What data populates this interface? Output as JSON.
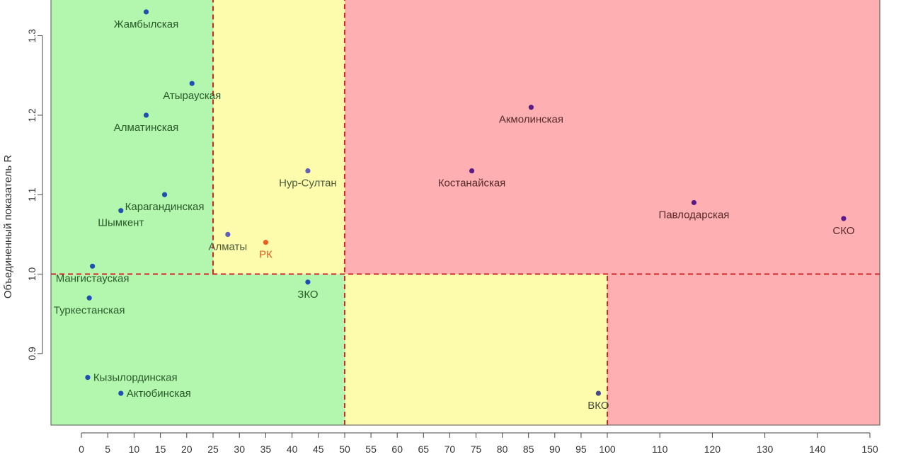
{
  "chart_data": {
    "type": "scatter",
    "title": "",
    "xlabel": "",
    "ylabel": "Объединенный показатель R",
    "xlim": [
      -4,
      153
    ],
    "ylim": [
      0.81,
      1.345
    ],
    "x_ticks": [
      0,
      5,
      10,
      15,
      20,
      25,
      30,
      35,
      40,
      45,
      50,
      55,
      60,
      65,
      70,
      75,
      80,
      85,
      90,
      95,
      100,
      110,
      120,
      130,
      140,
      150
    ],
    "y_ticks": [
      0.9,
      1.0,
      1.1,
      1.2,
      1.3
    ],
    "y_tick_labels": [
      "0.9",
      "1.0",
      "1.1",
      "1.2",
      "1.3"
    ],
    "grid": false,
    "zones": [
      {
        "x": [
          -4,
          25
        ],
        "y": [
          1.0,
          1.345
        ],
        "color": "#b3f7ae"
      },
      {
        "x": [
          25,
          50
        ],
        "y": [
          1.0,
          1.345
        ],
        "color": "#fdfbac"
      },
      {
        "x": [
          50,
          153
        ],
        "y": [
          1.0,
          1.345
        ],
        "color": "#fdafb1"
      },
      {
        "x": [
          -4,
          50
        ],
        "y": [
          0.81,
          1.0
        ],
        "color": "#b3f7ae"
      },
      {
        "x": [
          50,
          100
        ],
        "y": [
          0.81,
          1.0
        ],
        "color": "#fdfbac"
      },
      {
        "x": [
          100,
          153
        ],
        "y": [
          0.81,
          1.0
        ],
        "color": "#fdafb1"
      }
    ],
    "threshold_lines": [
      {
        "x": [
          -4,
          153
        ],
        "y": [
          1.0,
          1.0
        ]
      },
      {
        "x": [
          25,
          25
        ],
        "y": [
          1.0,
          1.345
        ]
      },
      {
        "x": [
          50,
          50
        ],
        "y": [
          0.81,
          1.345
        ]
      },
      {
        "x": [
          100,
          100
        ],
        "y": [
          0.81,
          1.0
        ]
      }
    ],
    "threshold_color": "#cc2a2a",
    "points": [
      {
        "label": "Жамбылская",
        "x": 12.3,
        "y": 1.33,
        "color": "#1f4fb4",
        "label_color": "#2a5a2a",
        "label_dx": 0,
        "label_dy": 22
      },
      {
        "label": "Атырауская",
        "x": 21.0,
        "y": 1.24,
        "color": "#1f4fb4",
        "label_color": "#2a5a2a",
        "label_dx": 0,
        "label_dy": 22
      },
      {
        "label": "Алматинская",
        "x": 12.3,
        "y": 1.2,
        "color": "#1f4fb4",
        "label_color": "#2a5a2a",
        "label_dx": 0,
        "label_dy": 22
      },
      {
        "label": "Карагандинская",
        "x": 15.8,
        "y": 1.1,
        "color": "#1f4fb4",
        "label_color": "#2a5a2a",
        "label_dx": 0,
        "label_dy": 22
      },
      {
        "label": "Шымкент",
        "x": 7.5,
        "y": 1.08,
        "color": "#1f4fb4",
        "label_color": "#2a5a2a",
        "label_dx": 0,
        "label_dy": 22
      },
      {
        "label": "Мангистауская",
        "x": 2.1,
        "y": 1.01,
        "color": "#1f4fb4",
        "label_color": "#2a5a2a",
        "label_dx": 0,
        "label_dy": 22
      },
      {
        "label": "Туркестанская",
        "x": 1.5,
        "y": 0.97,
        "color": "#1f4fb4",
        "label_color": "#2a5a2a",
        "label_dx": 0,
        "label_dy": 22
      },
      {
        "label": "Кызылординская",
        "x": 1.2,
        "y": 0.87,
        "color": "#1f4fb4",
        "label_color": "#2a5a2a",
        "label_dx": 8,
        "label_dy": 5,
        "anchor": "start"
      },
      {
        "label": "Актюбинская",
        "x": 7.5,
        "y": 0.85,
        "color": "#1f4fb4",
        "label_color": "#2a5a2a",
        "label_dx": 8,
        "label_dy": 5,
        "anchor": "start"
      },
      {
        "label": "Алматы",
        "x": 27.8,
        "y": 1.05,
        "color": "#6060b8",
        "label_color": "#4a5a3a",
        "label_dx": 0,
        "label_dy": 22
      },
      {
        "label": "РК",
        "x": 35.0,
        "y": 1.04,
        "color": "#e86020",
        "label_color": "#e86020",
        "label_dx": 0,
        "label_dy": 22
      },
      {
        "label": "Нур-Султан",
        "x": 43.0,
        "y": 1.13,
        "color": "#6060b8",
        "label_color": "#4a5a3a",
        "label_dx": 0,
        "label_dy": 22
      },
      {
        "label": "ЗКО",
        "x": 43.0,
        "y": 0.99,
        "color": "#1f4fb4",
        "label_color": "#2a5a2a",
        "label_dx": 0,
        "label_dy": 22
      },
      {
        "label": "Костанайская",
        "x": 74.2,
        "y": 1.13,
        "color": "#5a1a8a",
        "label_color": "#5a2a2a",
        "label_dx": 0,
        "label_dy": 22
      },
      {
        "label": "Акмолинская",
        "x": 85.5,
        "y": 1.21,
        "color": "#5a1a8a",
        "label_color": "#5a2a2a",
        "label_dx": 0,
        "label_dy": 22
      },
      {
        "label": "Павлодарская",
        "x": 116.5,
        "y": 1.09,
        "color": "#5a1a8a",
        "label_color": "#5a2a2a",
        "label_dx": 0,
        "label_dy": 22
      },
      {
        "label": "СКО",
        "x": 145.0,
        "y": 1.07,
        "color": "#5a1a8a",
        "label_color": "#5a2a2a",
        "label_dx": 0,
        "label_dy": 22
      },
      {
        "label": "ВКО",
        "x": 98.3,
        "y": 0.85,
        "color": "#4a4a8a",
        "label_color": "#4a4a3a",
        "label_dx": 0,
        "label_dy": 22
      }
    ]
  }
}
